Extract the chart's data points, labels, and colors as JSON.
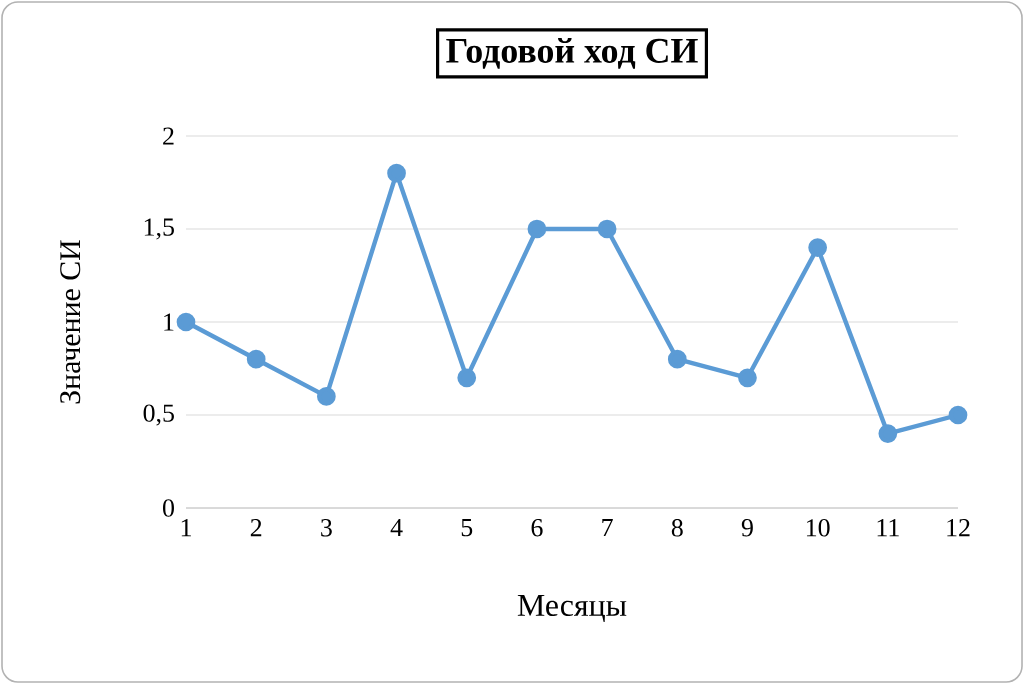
{
  "chart_data": {
    "type": "line",
    "title": "Годовой ход СИ",
    "xlabel": "Месяцы",
    "ylabel": "Значение СИ",
    "categories": [
      "1",
      "2",
      "3",
      "4",
      "5",
      "6",
      "7",
      "8",
      "9",
      "10",
      "11",
      "12"
    ],
    "values": [
      1,
      0.8,
      0.6,
      1.8,
      0.7,
      1.5,
      1.5,
      0.8,
      0.7,
      1.4,
      0.4,
      0.5
    ],
    "color": "#5b9bd5",
    "marker": "circle",
    "line_style": "solid",
    "grid": "y",
    "ylim": [
      0,
      2
    ],
    "yticks": [
      0,
      {
        "value": 0.5,
        "label": "0,5"
      },
      1,
      {
        "value": 1.5,
        "label": "1,5"
      },
      2
    ]
  }
}
